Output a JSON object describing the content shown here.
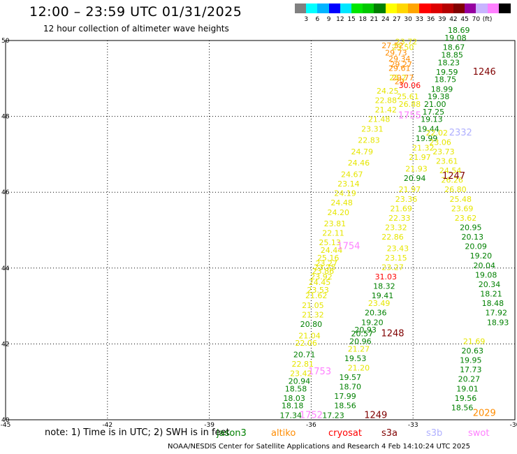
{
  "title": "12:00 – 23:59 UTC 01/31/2025",
  "subtitle": "12 hour collection of altimeter wave heights",
  "note": "note: 1) Time is in UTC; 2) SWH is in feet",
  "credit": "NOAA/NESDIS Center for Satellite Applications and Research   4 Feb 14:10:24 UTC 2025",
  "colors": {
    "plot_border": "#000000",
    "grid": "#000000",
    "jason3": "#008000",
    "altika": "#ff8c00",
    "cryosat": "#ff0000",
    "s3a": "#800000",
    "s3b": "#b0b0ff",
    "swot": "#ff80ff",
    "yellow": "#e6e600"
  },
  "satellites": [
    {
      "name": "jason3",
      "color": "#008000"
    },
    {
      "name": "altiko",
      "color": "#ff8c00"
    },
    {
      "name": "cryosat",
      "color": "#ff0000"
    },
    {
      "name": "s3a",
      "color": "#800000"
    },
    {
      "name": "s3b",
      "color": "#b0b0ff"
    },
    {
      "name": "swot",
      "color": "#ff80ff"
    }
  ],
  "legend": {
    "colors": [
      "#808080",
      "#00ffff",
      "#00b4ff",
      "#0000ff",
      "#00e6ff",
      "#00e600",
      "#00c800",
      "#008000",
      "#ffff00",
      "#ffd700",
      "#ffa500",
      "#ff0000",
      "#dc0000",
      "#b40000",
      "#800000",
      "#9600a0",
      "#c8b4ff",
      "#ff80ff",
      "#000000"
    ],
    "labels": [
      "3",
      "6",
      "9",
      "12",
      "15",
      "18",
      "21",
      "24",
      "27",
      "30",
      "33",
      "36",
      "39",
      "42",
      "45",
      "70",
      "(ft)"
    ]
  },
  "chart_data": {
    "type": "scatter",
    "title": "12:00 – 23:59 UTC 01/31/2025",
    "subtitle": "12 hour collection of altimeter wave heights",
    "xlim": [
      -45,
      -30
    ],
    "ylim": [
      40,
      50
    ],
    "x_ticks": [
      "-45",
      "-42",
      "-39",
      "-36",
      "-33",
      "-30"
    ],
    "x_tick_values": [
      -45,
      -42,
      -39,
      -36,
      -33,
      -30
    ],
    "y_ticks": [
      "40",
      "42",
      "44",
      "46",
      "48",
      "50"
    ],
    "y_tick_values": [
      40,
      42,
      44,
      46,
      48,
      50
    ],
    "grid": true,
    "units": "ft",
    "points": [
      {
        "lon": -33.2,
        "lat": 49.9,
        "label": "23.72",
        "c": "#e6e600"
      },
      {
        "lon": -33.6,
        "lat": 49.8,
        "label": "27.52",
        "c": "#ff8c00"
      },
      {
        "lon": -33.3,
        "lat": 49.75,
        "label": "23.50",
        "c": "#e6e600"
      },
      {
        "lon": -33.5,
        "lat": 49.6,
        "label": "29.73",
        "c": "#ff8c00"
      },
      {
        "lon": -33.4,
        "lat": 49.45,
        "label": "29.34",
        "c": "#ff8c00"
      },
      {
        "lon": -33.35,
        "lat": 49.3,
        "label": "29.27",
        "c": "#ff8c00"
      },
      {
        "lon": -33.4,
        "lat": 49.2,
        "label": "29.61",
        "c": "#ff8c00"
      },
      {
        "lon": -33.3,
        "lat": 48.95,
        "label": "29.77",
        "c": "#ff8c00"
      },
      {
        "lon": -33.45,
        "lat": 48.95,
        "label": "25.2",
        "c": "#e6e600"
      },
      {
        "lon": -33.4,
        "lat": 48.85,
        "label": "29",
        "c": "#ff8c00"
      },
      {
        "lon": -33.1,
        "lat": 48.75,
        "label": "30.06",
        "c": "#ff0000"
      },
      {
        "lon": -33.75,
        "lat": 48.6,
        "label": "24.25",
        "c": "#e6e600"
      },
      {
        "lon": -33.15,
        "lat": 48.45,
        "label": "25.61",
        "c": "#e6e600"
      },
      {
        "lon": -33.8,
        "lat": 48.35,
        "label": "22.88",
        "c": "#e6e600"
      },
      {
        "lon": -33.1,
        "lat": 48.25,
        "label": "26.88",
        "c": "#e6e600"
      },
      {
        "lon": -33.8,
        "lat": 48.1,
        "label": "21.42",
        "c": "#e6e600"
      },
      {
        "lon": -34.0,
        "lat": 47.85,
        "label": "21.48",
        "c": "#e6e600"
      },
      {
        "lon": -34.2,
        "lat": 47.6,
        "label": "23.31",
        "c": "#e6e600"
      },
      {
        "lon": -34.3,
        "lat": 47.3,
        "label": "22.83",
        "c": "#e6e600"
      },
      {
        "lon": -34.5,
        "lat": 47.0,
        "label": "24.79",
        "c": "#e6e600"
      },
      {
        "lon": -34.6,
        "lat": 46.7,
        "label": "24.46",
        "c": "#e6e600"
      },
      {
        "lon": -34.8,
        "lat": 46.4,
        "label": "24.67",
        "c": "#e6e600"
      },
      {
        "lon": -34.9,
        "lat": 46.15,
        "label": "23.14",
        "c": "#e6e600"
      },
      {
        "lon": -35.0,
        "lat": 45.9,
        "label": "24.19",
        "c": "#e6e600"
      },
      {
        "lon": -35.1,
        "lat": 45.65,
        "label": "24.48",
        "c": "#e6e600"
      },
      {
        "lon": -35.2,
        "lat": 45.4,
        "label": "24.20",
        "c": "#e6e600"
      },
      {
        "lon": -35.3,
        "lat": 45.1,
        "label": "23.81",
        "c": "#e6e600"
      },
      {
        "lon": -35.35,
        "lat": 44.85,
        "label": "22.11",
        "c": "#e6e600"
      },
      {
        "lon": -35.45,
        "lat": 44.6,
        "label": "25.13",
        "c": "#e6e600"
      },
      {
        "lon": -35.4,
        "lat": 44.4,
        "label": "24.44",
        "c": "#e6e600"
      },
      {
        "lon": -35.5,
        "lat": 44.2,
        "label": "25.16",
        "c": "#e6e600"
      },
      {
        "lon": -35.55,
        "lat": 44.05,
        "label": "23.27",
        "c": "#e6e600"
      },
      {
        "lon": -35.6,
        "lat": 43.95,
        "label": "23.75",
        "c": "#e6e600"
      },
      {
        "lon": -35.65,
        "lat": 43.85,
        "label": "23.86",
        "c": "#e6e600"
      },
      {
        "lon": -35.7,
        "lat": 43.7,
        "label": "23.92",
        "c": "#e6e600"
      },
      {
        "lon": -35.75,
        "lat": 43.55,
        "label": "24.45",
        "c": "#e6e600"
      },
      {
        "lon": -35.8,
        "lat": 43.35,
        "label": "23.53",
        "c": "#e6e600"
      },
      {
        "lon": -35.85,
        "lat": 43.2,
        "label": "21.62",
        "c": "#e6e600"
      },
      {
        "lon": -35.95,
        "lat": 42.95,
        "label": "21.05",
        "c": "#e6e600"
      },
      {
        "lon": -35.95,
        "lat": 42.7,
        "label": "21.32",
        "c": "#e6e600"
      },
      {
        "lon": -36.0,
        "lat": 42.45,
        "label": "20.80",
        "c": "#008000"
      },
      {
        "lon": -36.05,
        "lat": 42.15,
        "label": "21.04",
        "c": "#e6e600"
      },
      {
        "lon": -36.15,
        "lat": 41.95,
        "label": "22.06",
        "c": "#e6e600"
      },
      {
        "lon": -36.2,
        "lat": 41.65,
        "label": "20.71",
        "c": "#008000"
      },
      {
        "lon": -36.25,
        "lat": 41.4,
        "label": "22.81",
        "c": "#e6e600"
      },
      {
        "lon": -36.3,
        "lat": 41.15,
        "label": "23.42",
        "c": "#e6e600"
      },
      {
        "lon": -36.35,
        "lat": 40.95,
        "label": "20.94",
        "c": "#008000"
      },
      {
        "lon": -36.45,
        "lat": 40.75,
        "label": "18.58",
        "c": "#008000"
      },
      {
        "lon": -36.5,
        "lat": 40.5,
        "label": "18.03",
        "c": "#008000"
      },
      {
        "lon": -36.55,
        "lat": 40.3,
        "label": "18.18",
        "c": "#008000"
      },
      {
        "lon": -36.6,
        "lat": 40.05,
        "label": "17.34",
        "c": "#008000"
      },
      {
        "lon": -35.35,
        "lat": 40.05,
        "label": "17.23",
        "c": "#008000"
      },
      {
        "lon": -35.0,
        "lat": 40.3,
        "label": "18.56",
        "c": "#008000"
      },
      {
        "lon": -35.0,
        "lat": 40.55,
        "label": "17.99",
        "c": "#008000"
      },
      {
        "lon": -34.85,
        "lat": 40.8,
        "label": "18.70",
        "c": "#008000"
      },
      {
        "lon": -34.85,
        "lat": 41.05,
        "label": "19.57",
        "c": "#008000"
      },
      {
        "lon": -34.6,
        "lat": 41.3,
        "label": "21.20",
        "c": "#e6e600"
      },
      {
        "lon": -34.7,
        "lat": 41.55,
        "label": "19.53",
        "c": "#008000"
      },
      {
        "lon": -34.6,
        "lat": 41.8,
        "label": "21.27",
        "c": "#e6e600"
      },
      {
        "lon": -34.55,
        "lat": 42.0,
        "label": "20.96",
        "c": "#008000"
      },
      {
        "lon": -34.5,
        "lat": 42.2,
        "label": "20.57",
        "c": "#008000"
      },
      {
        "lon": -34.4,
        "lat": 42.3,
        "label": "20.93",
        "c": "#008000"
      },
      {
        "lon": -34.2,
        "lat": 42.5,
        "label": "19.20",
        "c": "#008000"
      },
      {
        "lon": -34.1,
        "lat": 42.75,
        "label": "20.36",
        "c": "#008000"
      },
      {
        "lon": -34.0,
        "lat": 43.0,
        "label": "23.49",
        "c": "#e6e600"
      },
      {
        "lon": -33.9,
        "lat": 43.2,
        "label": "19.41",
        "c": "#008000"
      },
      {
        "lon": -33.85,
        "lat": 43.45,
        "label": "18.32",
        "c": "#008000"
      },
      {
        "lon": -33.8,
        "lat": 43.7,
        "label": "31.03",
        "c": "#ff0000"
      },
      {
        "lon": -33.6,
        "lat": 43.95,
        "label": "23.27",
        "c": "#e6e600"
      },
      {
        "lon": -33.5,
        "lat": 44.2,
        "label": "23.15",
        "c": "#e6e600"
      },
      {
        "lon": -33.45,
        "lat": 44.45,
        "label": "23.43",
        "c": "#e6e600"
      },
      {
        "lon": -33.6,
        "lat": 44.75,
        "label": "22.86",
        "c": "#e6e600"
      },
      {
        "lon": -33.5,
        "lat": 45.0,
        "label": "23.32",
        "c": "#e6e600"
      },
      {
        "lon": -33.4,
        "lat": 45.25,
        "label": "22.33",
        "c": "#e6e600"
      },
      {
        "lon": -33.35,
        "lat": 45.5,
        "label": "21.69",
        "c": "#e6e600"
      },
      {
        "lon": -33.2,
        "lat": 45.75,
        "label": "23.36",
        "c": "#e6e600"
      },
      {
        "lon": -33.1,
        "lat": 46.0,
        "label": "21.97",
        "c": "#e6e600"
      },
      {
        "lon": -32.95,
        "lat": 46.3,
        "label": "20.94",
        "c": "#008000"
      },
      {
        "lon": -32.9,
        "lat": 46.55,
        "label": "21.93",
        "c": "#e6e600"
      },
      {
        "lon": -32.8,
        "lat": 46.85,
        "label": "21.97",
        "c": "#e6e600"
      },
      {
        "lon": -32.7,
        "lat": 47.1,
        "label": "21.32",
        "c": "#e6e600"
      },
      {
        "lon": -32.6,
        "lat": 47.35,
        "label": "19.99",
        "c": "#008000"
      },
      {
        "lon": -32.55,
        "lat": 47.6,
        "label": "19.44",
        "c": "#008000"
      },
      {
        "lon": -32.45,
        "lat": 47.85,
        "label": "19.13",
        "c": "#008000"
      },
      {
        "lon": -32.4,
        "lat": 48.05,
        "label": "17.25",
        "c": "#008000"
      },
      {
        "lon": -32.35,
        "lat": 48.25,
        "label": "21.00",
        "c": "#008000"
      },
      {
        "lon": -32.25,
        "lat": 48.45,
        "label": "19.38",
        "c": "#008000"
      },
      {
        "lon": -32.15,
        "lat": 48.65,
        "label": "18.99",
        "c": "#008000"
      },
      {
        "lon": -32.05,
        "lat": 48.9,
        "label": "18.75",
        "c": "#008000"
      },
      {
        "lon": -32.0,
        "lat": 49.1,
        "label": "19.59",
        "c": "#008000"
      },
      {
        "lon": -31.95,
        "lat": 49.35,
        "label": "18.23",
        "c": "#008000"
      },
      {
        "lon": -31.85,
        "lat": 49.55,
        "label": "18.85",
        "c": "#008000"
      },
      {
        "lon": -31.8,
        "lat": 49.75,
        "label": "18.67",
        "c": "#008000"
      },
      {
        "lon": -31.75,
        "lat": 50.0,
        "label": "19.08",
        "c": "#008000"
      },
      {
        "lon": -31.65,
        "lat": 50.2,
        "label": "18.69",
        "c": "#008000"
      },
      {
        "lon": -32.3,
        "lat": 47.5,
        "label": "22.02",
        "c": "#e6e600"
      },
      {
        "lon": -32.2,
        "lat": 47.25,
        "label": "23.06",
        "c": "#e6e600"
      },
      {
        "lon": -32.1,
        "lat": 47.0,
        "label": "23.73",
        "c": "#e6e600"
      },
      {
        "lon": -32.0,
        "lat": 46.75,
        "label": "23.61",
        "c": "#e6e600"
      },
      {
        "lon": -31.9,
        "lat": 46.5,
        "label": "24.54",
        "c": "#e6e600"
      },
      {
        "lon": -31.85,
        "lat": 46.25,
        "label": "26.26",
        "c": "#e6e600"
      },
      {
        "lon": -31.75,
        "lat": 46.0,
        "label": "26.80",
        "c": "#e6e600"
      },
      {
        "lon": -31.6,
        "lat": 45.75,
        "label": "25.48",
        "c": "#e6e600"
      },
      {
        "lon": -31.55,
        "lat": 45.5,
        "label": "23.69",
        "c": "#e6e600"
      },
      {
        "lon": -31.45,
        "lat": 45.25,
        "label": "23.62",
        "c": "#e6e600"
      },
      {
        "lon": -31.3,
        "lat": 45.0,
        "label": "20.95",
        "c": "#008000"
      },
      {
        "lon": -31.25,
        "lat": 44.75,
        "label": "20.13",
        "c": "#008000"
      },
      {
        "lon": -31.15,
        "lat": 44.5,
        "label": "20.09",
        "c": "#008000"
      },
      {
        "lon": -31.0,
        "lat": 44.25,
        "label": "19.20",
        "c": "#008000"
      },
      {
        "lon": -30.9,
        "lat": 44.0,
        "label": "20.04",
        "c": "#008000"
      },
      {
        "lon": -30.85,
        "lat": 43.75,
        "label": "19.08",
        "c": "#008000"
      },
      {
        "lon": -30.75,
        "lat": 43.5,
        "label": "20.34",
        "c": "#008000"
      },
      {
        "lon": -30.7,
        "lat": 43.25,
        "label": "18.21",
        "c": "#008000"
      },
      {
        "lon": -30.65,
        "lat": 43.0,
        "label": "18.48",
        "c": "#008000"
      },
      {
        "lon": -30.55,
        "lat": 42.75,
        "label": "17.92",
        "c": "#008000"
      },
      {
        "lon": -30.5,
        "lat": 42.5,
        "label": "18.93",
        "c": "#008000"
      },
      {
        "lon": -31.2,
        "lat": 42.0,
        "label": "21.69",
        "c": "#e6e600"
      },
      {
        "lon": -31.25,
        "lat": 41.75,
        "label": "20.63",
        "c": "#008000"
      },
      {
        "lon": -31.3,
        "lat": 41.5,
        "label": "19.95",
        "c": "#008000"
      },
      {
        "lon": -31.3,
        "lat": 41.25,
        "label": "17.73",
        "c": "#008000"
      },
      {
        "lon": -31.35,
        "lat": 41.0,
        "label": "20.27",
        "c": "#008000"
      },
      {
        "lon": -31.4,
        "lat": 40.75,
        "label": "19.01",
        "c": "#008000"
      },
      {
        "lon": -31.45,
        "lat": 40.5,
        "label": "19.56",
        "c": "#008000"
      },
      {
        "lon": -31.55,
        "lat": 40.25,
        "label": "18.56",
        "c": "#008000"
      }
    ],
    "pass_ids": [
      {
        "lon": -30.9,
        "lat": 49.1,
        "label": "1246",
        "c": "#800000"
      },
      {
        "lon": -31.8,
        "lat": 46.35,
        "label": "1247",
        "c": "#800000"
      },
      {
        "lon": -33.6,
        "lat": 42.2,
        "label": "1248",
        "c": "#800000"
      },
      {
        "lon": -34.1,
        "lat": 40.05,
        "label": "1249",
        "c": "#800000"
      },
      {
        "lon": -33.1,
        "lat": 47.95,
        "label": "1755",
        "c": "#ff80ff"
      },
      {
        "lon": -34.9,
        "lat": 44.5,
        "label": "1754",
        "c": "#ff80ff"
      },
      {
        "lon": -35.75,
        "lat": 41.2,
        "label": "1753",
        "c": "#ff80ff"
      },
      {
        "lon": -36.0,
        "lat": 40.05,
        "label": "1752",
        "c": "#ff80ff"
      },
      {
        "lon": -31.6,
        "lat": 47.5,
        "label": "2332",
        "c": "#b0b0ff"
      },
      {
        "lon": -30.9,
        "lat": 40.1,
        "label": "2029",
        "c": "#ff8c00"
      }
    ]
  }
}
